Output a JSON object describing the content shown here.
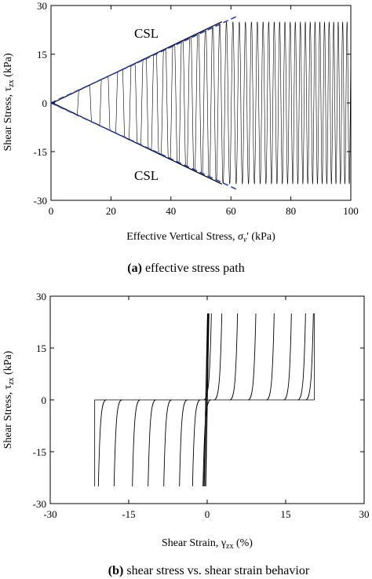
{
  "chart_data": [
    {
      "id": "a",
      "type": "line",
      "caption_letter": "(a)",
      "caption_text": " effective stress path",
      "xlabel_main": "Effective Vertical Stress, ",
      "xlabel_symbol": "σ",
      "xlabel_sub": "v",
      "xlabel_unit": "' (kPa)",
      "ylabel_main": "Shear Stress, τ",
      "ylabel_sub": "zx",
      "ylabel_unit": " (kPa)",
      "xlim": [
        0,
        100
      ],
      "ylim": [
        -30,
        30
      ],
      "xticks": [
        0,
        20,
        40,
        60,
        80,
        100
      ],
      "yticks": [
        -30,
        -15,
        0,
        15,
        30
      ],
      "annotations": [
        {
          "text": "CSL",
          "x": 38,
          "y": 23
        },
        {
          "text": "CSL",
          "x": 37,
          "y": -23
        }
      ],
      "csl_slope": 0.43,
      "csl_color": "#1f3fbf",
      "stress_path": {
        "start_vertical_stress": 100,
        "cyclic_amplitude": 25,
        "end_vertical_stress": 0,
        "cycles": 40
      }
    },
    {
      "id": "b",
      "type": "line",
      "caption_letter": "(b)",
      "caption_text": " shear stress vs. shear strain behavior",
      "xlabel_main": "Shear Strain, γ",
      "xlabel_sub": "zx",
      "xlabel_unit": " (%)",
      "ylabel_main": "Shear Stress, τ",
      "ylabel_sub": "zx",
      "ylabel_unit": " (kPa)",
      "xlim": [
        -30,
        30
      ],
      "ylim": [
        -30,
        30
      ],
      "xticks": [
        -30,
        -15,
        0,
        15,
        30
      ],
      "yticks": [
        -30,
        -15,
        0,
        15,
        30
      ],
      "positive_loop_strains": [
        0.5,
        2.5,
        5.5,
        9,
        12.5,
        15.8,
        18.5,
        20
      ],
      "negative_loop_strains": [
        -0.5,
        -2.5,
        -5,
        -8,
        -11,
        -14,
        -17.5,
        -20.5
      ],
      "peak_stress": 25,
      "max_strain_envelope": [
        -21.5,
        20.5
      ]
    }
  ]
}
